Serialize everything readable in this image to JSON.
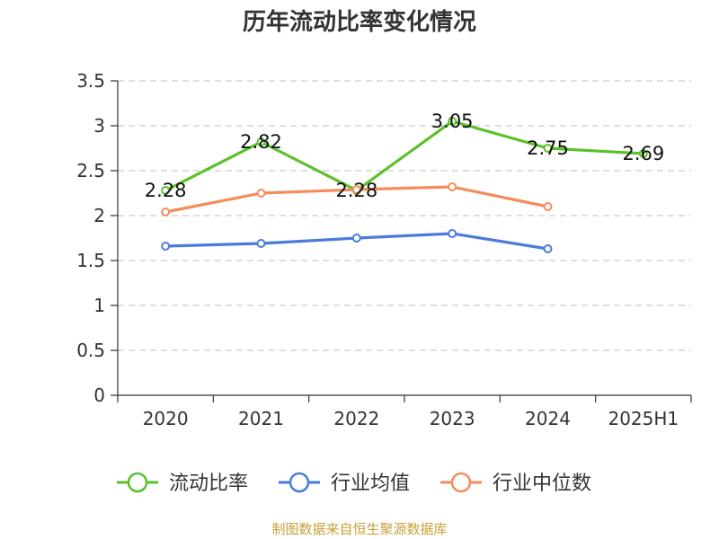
{
  "title": "历年流动比率变化情况",
  "source": "制图数据来自恒生聚源数据库",
  "chart_data": {
    "type": "line",
    "title": "历年流动比率变化情况",
    "categories": [
      "2020",
      "2021",
      "2022",
      "2023",
      "2024",
      "2025H1"
    ],
    "ylim": [
      0,
      3.5
    ],
    "yticks": [
      "0",
      "0.5",
      "1",
      "1.5",
      "2",
      "2.5",
      "3",
      "3.5"
    ],
    "grid": true,
    "legend_position": "bottom",
    "series": [
      {
        "name": "流动比率",
        "color": "#5bc12a",
        "values": [
          2.28,
          2.82,
          2.28,
          3.05,
          2.75,
          2.69
        ],
        "labels": [
          "2.28",
          "2.82",
          "2.28",
          "3.05",
          "2.75",
          "2.69"
        ]
      },
      {
        "name": "行业均值",
        "color": "#4a7ddb",
        "values": [
          1.66,
          1.69,
          1.75,
          1.8,
          1.63,
          null
        ]
      },
      {
        "name": "行业中位数",
        "color": "#f48c5c",
        "values": [
          2.04,
          2.25,
          2.29,
          2.32,
          2.1,
          null
        ]
      }
    ]
  }
}
